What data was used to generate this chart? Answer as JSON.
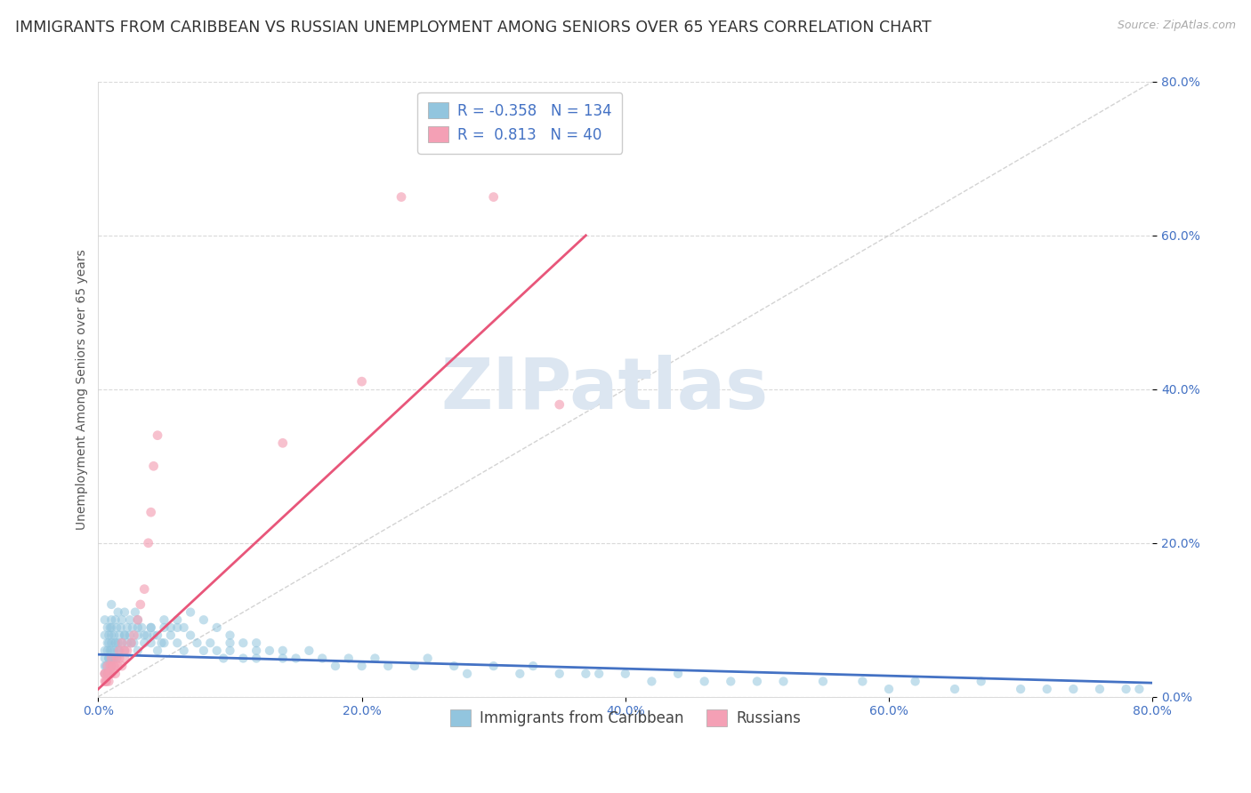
{
  "title": "IMMIGRANTS FROM CARIBBEAN VS RUSSIAN UNEMPLOYMENT AMONG SENIORS OVER 65 YEARS CORRELATION CHART",
  "source": "Source: ZipAtlas.com",
  "ylabel": "Unemployment Among Seniors over 65 years",
  "xlim": [
    0.0,
    0.8
  ],
  "ylim": [
    0.0,
    0.8
  ],
  "legend_label1": "Immigrants from Caribbean",
  "legend_label2": "Russians",
  "R1": -0.358,
  "N1": 134,
  "R2": 0.813,
  "N2": 40,
  "color1": "#92c5de",
  "color2": "#f4a0b5",
  "trendline1_color": "#4472c4",
  "trendline2_color": "#e8567a",
  "watermark_color": "#dce6f1",
  "background_color": "#ffffff",
  "title_fontsize": 12.5,
  "axis_label_fontsize": 10,
  "tick_fontsize": 10,
  "legend_fontsize": 12,
  "tick_color": "#4472c4",
  "x_ticks": [
    0.0,
    0.2,
    0.4,
    0.6,
    0.8
  ],
  "y_ticks": [
    0.0,
    0.2,
    0.4,
    0.6,
    0.8
  ],
  "blue_x": [
    0.005,
    0.005,
    0.005,
    0.005,
    0.005,
    0.007,
    0.007,
    0.007,
    0.008,
    0.008,
    0.008,
    0.009,
    0.009,
    0.01,
    0.01,
    0.01,
    0.01,
    0.01,
    0.01,
    0.012,
    0.012,
    0.013,
    0.013,
    0.014,
    0.014,
    0.015,
    0.015,
    0.016,
    0.016,
    0.017,
    0.018,
    0.018,
    0.02,
    0.02,
    0.02,
    0.022,
    0.022,
    0.024,
    0.024,
    0.026,
    0.027,
    0.028,
    0.03,
    0.03,
    0.03,
    0.033,
    0.035,
    0.037,
    0.04,
    0.04,
    0.042,
    0.045,
    0.048,
    0.05,
    0.05,
    0.055,
    0.06,
    0.06,
    0.065,
    0.07,
    0.075,
    0.08,
    0.085,
    0.09,
    0.095,
    0.1,
    0.1,
    0.11,
    0.11,
    0.12,
    0.12,
    0.13,
    0.14,
    0.15,
    0.16,
    0.17,
    0.18,
    0.19,
    0.2,
    0.21,
    0.22,
    0.24,
    0.25,
    0.27,
    0.28,
    0.3,
    0.32,
    0.33,
    0.35,
    0.37,
    0.38,
    0.4,
    0.42,
    0.44,
    0.46,
    0.48,
    0.5,
    0.52,
    0.55,
    0.58,
    0.6,
    0.62,
    0.65,
    0.67,
    0.7,
    0.72,
    0.74,
    0.76,
    0.78,
    0.79,
    0.005,
    0.006,
    0.007,
    0.008,
    0.01,
    0.01,
    0.012,
    0.013,
    0.015,
    0.02,
    0.025,
    0.03,
    0.035,
    0.04,
    0.045,
    0.05,
    0.055,
    0.06,
    0.065,
    0.07,
    0.08,
    0.09,
    0.1,
    0.12,
    0.14
  ],
  "blue_y": [
    0.05,
    0.04,
    0.08,
    0.06,
    0.1,
    0.07,
    0.09,
    0.06,
    0.08,
    0.05,
    0.07,
    0.09,
    0.06,
    0.08,
    0.1,
    0.07,
    0.12,
    0.05,
    0.09,
    0.08,
    0.06,
    0.1,
    0.07,
    0.09,
    0.05,
    0.11,
    0.07,
    0.08,
    0.06,
    0.09,
    0.1,
    0.07,
    0.08,
    0.11,
    0.06,
    0.09,
    0.07,
    0.1,
    0.08,
    0.09,
    0.07,
    0.11,
    0.08,
    0.06,
    0.1,
    0.09,
    0.07,
    0.08,
    0.09,
    0.07,
    0.08,
    0.06,
    0.07,
    0.09,
    0.07,
    0.08,
    0.07,
    0.09,
    0.06,
    0.08,
    0.07,
    0.06,
    0.07,
    0.06,
    0.05,
    0.07,
    0.06,
    0.07,
    0.05,
    0.06,
    0.05,
    0.06,
    0.05,
    0.05,
    0.06,
    0.05,
    0.04,
    0.05,
    0.04,
    0.05,
    0.04,
    0.04,
    0.05,
    0.04,
    0.03,
    0.04,
    0.03,
    0.04,
    0.03,
    0.03,
    0.03,
    0.03,
    0.02,
    0.03,
    0.02,
    0.02,
    0.02,
    0.02,
    0.02,
    0.02,
    0.01,
    0.02,
    0.01,
    0.02,
    0.01,
    0.01,
    0.01,
    0.01,
    0.01,
    0.01,
    0.03,
    0.04,
    0.03,
    0.05,
    0.04,
    0.06,
    0.05,
    0.07,
    0.06,
    0.08,
    0.07,
    0.09,
    0.08,
    0.09,
    0.08,
    0.1,
    0.09,
    0.1,
    0.09,
    0.11,
    0.1,
    0.09,
    0.08,
    0.07,
    0.06
  ],
  "pink_x": [
    0.005,
    0.005,
    0.006,
    0.007,
    0.008,
    0.009,
    0.01,
    0.01,
    0.012,
    0.013,
    0.015,
    0.016,
    0.018,
    0.02,
    0.022,
    0.025,
    0.027,
    0.03,
    0.032,
    0.035,
    0.038,
    0.04,
    0.042,
    0.045,
    0.14,
    0.2,
    0.23,
    0.3,
    0.35,
    0.005,
    0.006,
    0.007,
    0.008,
    0.009,
    0.01,
    0.012,
    0.014,
    0.016,
    0.018,
    0.02
  ],
  "pink_y": [
    0.02,
    0.03,
    0.02,
    0.03,
    0.02,
    0.03,
    0.04,
    0.03,
    0.04,
    0.03,
    0.04,
    0.05,
    0.04,
    0.05,
    0.06,
    0.07,
    0.08,
    0.1,
    0.12,
    0.14,
    0.2,
    0.24,
    0.3,
    0.34,
    0.33,
    0.41,
    0.65,
    0.65,
    0.38,
    0.03,
    0.02,
    0.04,
    0.03,
    0.04,
    0.05,
    0.04,
    0.05,
    0.06,
    0.07,
    0.06
  ],
  "trendline1_x": [
    0.0,
    0.8
  ],
  "trendline1_y": [
    0.055,
    0.018
  ],
  "trendline2_x": [
    0.0,
    0.37
  ],
  "trendline2_y": [
    0.01,
    0.6
  ]
}
